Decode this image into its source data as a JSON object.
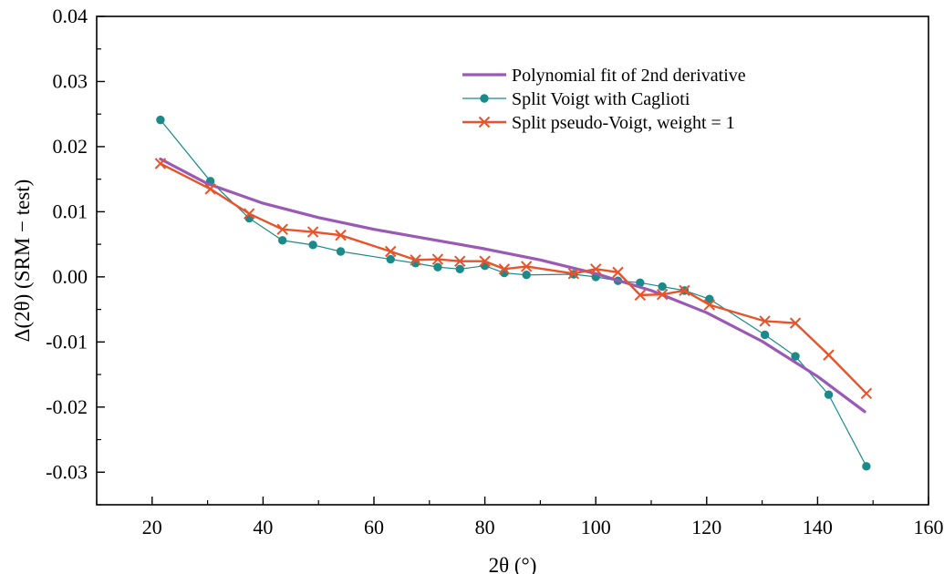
{
  "chart_data": {
    "type": "line",
    "title": "",
    "xlabel": "2θ (°)",
    "ylabel": "Δ(2θ) (SRM − test)",
    "xlim": [
      10,
      160
    ],
    "ylim": [
      -0.035,
      0.04
    ],
    "xticks": [
      20,
      40,
      60,
      80,
      100,
      120,
      140,
      160
    ],
    "xtick_labels": [
      "20",
      "40",
      "60",
      "80",
      "100",
      "120",
      "140",
      "160"
    ],
    "yticks": [
      -0.03,
      -0.02,
      -0.01,
      0.0,
      0.01,
      0.02,
      0.03,
      0.04
    ],
    "ytick_labels": [
      "-0.03",
      "-0.02",
      "-0.01",
      "0.00",
      "0.01",
      "0.02",
      "0.03",
      "0.04"
    ],
    "grid": false,
    "legend_position": "top-right",
    "series": [
      {
        "name": "Polynomial fit of 2nd derivative",
        "style": "line",
        "color": "#9b59b6",
        "x": [
          21.5,
          30,
          40,
          50,
          60,
          70,
          80,
          90,
          100,
          110,
          120,
          130,
          140,
          148.5
        ],
        "y": [
          0.0181,
          0.0143,
          0.0113,
          0.0091,
          0.0073,
          0.0058,
          0.0043,
          0.0026,
          0.0005,
          -0.0021,
          -0.0055,
          -0.0099,
          -0.0153,
          -0.0207
        ]
      },
      {
        "name": "Split Voigt with Caglioti",
        "style": "line-dot",
        "color": "#1a8a8a",
        "x": [
          21.5,
          30.5,
          37.5,
          43.5,
          49,
          54,
          63,
          67.5,
          71.5,
          75.5,
          80,
          83.5,
          87.5,
          96,
          100,
          104,
          108,
          112,
          116,
          120.5,
          130.5,
          136,
          142,
          148.8
        ],
        "y": [
          0.0241,
          0.0147,
          0.009,
          0.0056,
          0.0049,
          0.0039,
          0.0027,
          0.0021,
          0.0015,
          0.0012,
          0.0017,
          0.0006,
          0.0003,
          0.0004,
          0.0,
          -0.0006,
          -0.0009,
          -0.0015,
          -0.0021,
          -0.0034,
          -0.0089,
          -0.0122,
          -0.0181,
          -0.0291
        ]
      },
      {
        "name": "Split pseudo-Voigt, weight = 1",
        "style": "line-x",
        "color": "#e8532a",
        "x": [
          21.5,
          30.5,
          37.5,
          43.5,
          49,
          54,
          63,
          67.5,
          71.5,
          75.5,
          80,
          83.5,
          87.5,
          96,
          100,
          104,
          108,
          112,
          116,
          120.5,
          130.5,
          136,
          142,
          148.8
        ],
        "y": [
          0.0174,
          0.0135,
          0.0097,
          0.0073,
          0.0069,
          0.0064,
          0.0039,
          0.0026,
          0.0027,
          0.0024,
          0.0024,
          0.0012,
          0.0016,
          0.0005,
          0.0012,
          0.0007,
          -0.0028,
          -0.0027,
          -0.0021,
          -0.0043,
          -0.0068,
          -0.0071,
          -0.012,
          -0.0179
        ]
      }
    ]
  }
}
